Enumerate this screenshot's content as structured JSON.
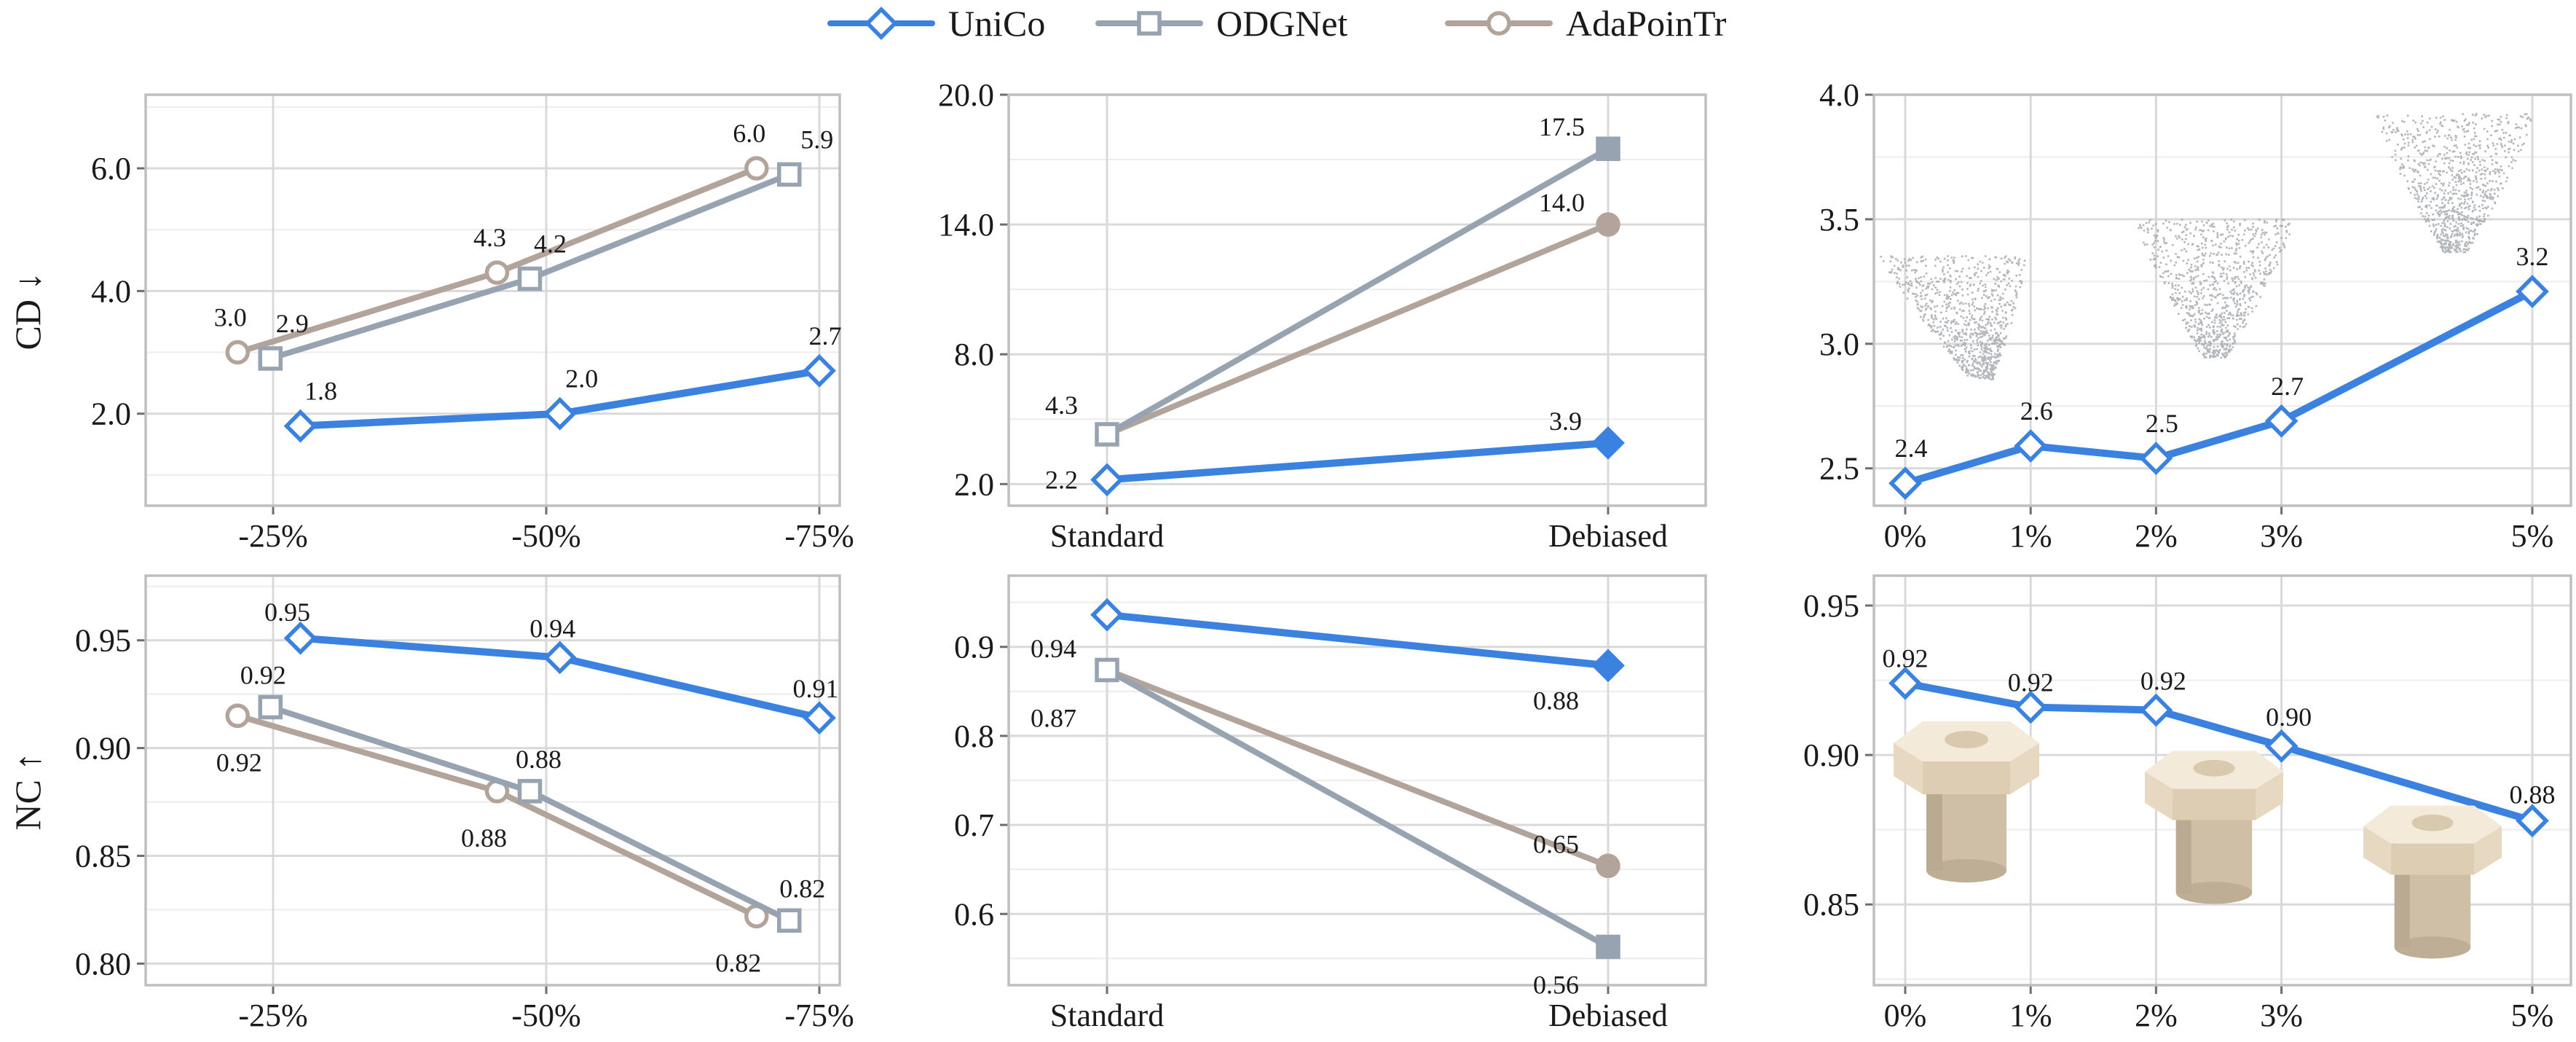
{
  "legend": [
    {
      "name": "UniCo",
      "marker": "diamond",
      "color": "#3b82e0"
    },
    {
      "name": "ODGNet",
      "marker": "square",
      "color": "#97a3b0"
    },
    {
      "name": "AdaPoinTr",
      "marker": "circle",
      "color": "#b3a49b"
    }
  ],
  "colors": {
    "UniCo": "#3b82e0",
    "ODGNet": "#97a3b0",
    "AdaPoinTr": "#b3a49b"
  },
  "chart_data": [
    {
      "id": "cd-reduction",
      "type": "line",
      "ylabel": "CD ↓",
      "categories": [
        "-25%",
        "-50%",
        "-75%"
      ],
      "ylim": [
        0.5,
        7.2
      ],
      "yticks": [
        2.0,
        4.0,
        6.0
      ],
      "grid": true,
      "series": [
        {
          "name": "UniCo",
          "x": [
            0.1,
            1.05,
            2.0
          ],
          "values": [
            1.8,
            2.0,
            2.7
          ],
          "labels": [
            "1.8",
            "2.0",
            "2.7"
          ],
          "filled": [
            false,
            false,
            false
          ]
        },
        {
          "name": "ODGNet",
          "x": [
            -0.01,
            0.94,
            1.89
          ],
          "values": [
            2.9,
            4.2,
            5.9
          ],
          "labels": [
            "2.9",
            "4.2",
            "5.9"
          ],
          "filled": [
            false,
            false,
            false
          ]
        },
        {
          "name": "AdaPoinTr",
          "x": [
            -0.13,
            0.82,
            1.77
          ],
          "values": [
            3.0,
            4.3,
            6.0
          ],
          "labels": [
            "3.0",
            "4.3",
            "6.0"
          ],
          "filled": [
            false,
            false,
            false
          ]
        }
      ]
    },
    {
      "id": "cd-debiased",
      "type": "line",
      "ylabel": "",
      "categories": [
        "Standard",
        "Debiased"
      ],
      "ylim": [
        1.0,
        20.0
      ],
      "yticks": [
        2.0,
        8.0,
        14.0,
        20.0
      ],
      "grid": true,
      "series": [
        {
          "name": "UniCo",
          "x": [
            0,
            1
          ],
          "values": [
            2.2,
            3.9
          ],
          "labels": [
            "2.2",
            "3.9"
          ],
          "filled": [
            false,
            true
          ]
        },
        {
          "name": "ODGNet",
          "x": [
            0,
            1
          ],
          "values": [
            4.3,
            17.5
          ],
          "labels": [
            "4.3",
            "17.5"
          ],
          "filled": [
            false,
            true
          ]
        },
        {
          "name": "AdaPoinTr",
          "x": [
            0,
            1
          ],
          "values": [
            4.3,
            14.0
          ],
          "labels": [
            "",
            "14.0"
          ],
          "filled": [
            false,
            true
          ]
        }
      ]
    },
    {
      "id": "cd-noise",
      "type": "line",
      "ylabel": "",
      "categories": [
        "0%",
        "1%",
        "2%",
        "3%",
        "5%"
      ],
      "ylim": [
        2.35,
        4.0
      ],
      "yticks": [
        2.5,
        3.0,
        3.5,
        4.0
      ],
      "grid": true,
      "series": [
        {
          "name": "UniCo",
          "x": [
            0,
            1,
            2,
            3,
            5
          ],
          "values": [
            2.44,
            2.59,
            2.54,
            2.69,
            3.21
          ],
          "labels": [
            "2.4",
            "2.6",
            "2.5",
            "2.7",
            "3.2"
          ],
          "filled": [
            false,
            false,
            false,
            false,
            false
          ]
        }
      ]
    },
    {
      "id": "nc-reduction",
      "type": "line",
      "ylabel": "NC ↑",
      "categories": [
        "-25%",
        "-50%",
        "-75%"
      ],
      "ylim": [
        0.79,
        0.98
      ],
      "yticks": [
        0.8,
        0.85,
        0.9,
        0.95
      ],
      "grid": true,
      "series": [
        {
          "name": "UniCo",
          "x": [
            0.1,
            1.05,
            2.0
          ],
          "values": [
            0.951,
            0.942,
            0.914
          ],
          "labels": [
            "0.95",
            "0.94",
            "0.91"
          ],
          "filled": [
            false,
            false,
            false
          ]
        },
        {
          "name": "ODGNet",
          "x": [
            -0.01,
            0.94,
            1.89
          ],
          "values": [
            0.919,
            0.88,
            0.82
          ],
          "labels": [
            "0.92",
            "0.88",
            "0.82"
          ],
          "filled": [
            false,
            false,
            false
          ]
        },
        {
          "name": "AdaPoinTr",
          "x": [
            -0.13,
            0.82,
            1.77
          ],
          "values": [
            0.915,
            0.88,
            0.822
          ],
          "labels": [
            "0.92",
            "0.88",
            "0.82"
          ],
          "filled": [
            false,
            false,
            false
          ]
        }
      ]
    },
    {
      "id": "nc-debiased",
      "type": "line",
      "ylabel": "",
      "categories": [
        "Standard",
        "Debiased"
      ],
      "ylim": [
        0.52,
        0.98
      ],
      "yticks": [
        0.6,
        0.7,
        0.8,
        0.9
      ],
      "grid": true,
      "series": [
        {
          "name": "UniCo",
          "x": [
            0,
            1
          ],
          "values": [
            0.936,
            0.879
          ],
          "labels": [
            "0.94",
            "0.88"
          ],
          "filled": [
            false,
            true
          ]
        },
        {
          "name": "ODGNet",
          "x": [
            0,
            1
          ],
          "values": [
            0.874,
            0.563
          ],
          "labels": [
            "0.87",
            "0.56"
          ],
          "filled": [
            false,
            true
          ]
        },
        {
          "name": "AdaPoinTr",
          "x": [
            0,
            1
          ],
          "values": [
            0.874,
            0.654
          ],
          "labels": [
            "",
            "0.65"
          ],
          "filled": [
            false,
            true
          ]
        }
      ]
    },
    {
      "id": "nc-noise",
      "type": "line",
      "ylabel": "",
      "categories": [
        "0%",
        "1%",
        "2%",
        "3%",
        "5%"
      ],
      "ylim": [
        0.823,
        0.96
      ],
      "yticks": [
        0.85,
        0.9,
        0.95
      ],
      "grid": true,
      "series": [
        {
          "name": "UniCo",
          "x": [
            0,
            1,
            2,
            3,
            5
          ],
          "values": [
            0.924,
            0.916,
            0.915,
            0.903,
            0.878
          ],
          "labels": [
            "0.92",
            "0.92",
            "0.92",
            "0.90",
            "0.88"
          ],
          "filled": [
            false,
            false,
            false,
            false,
            false
          ]
        }
      ]
    }
  ]
}
